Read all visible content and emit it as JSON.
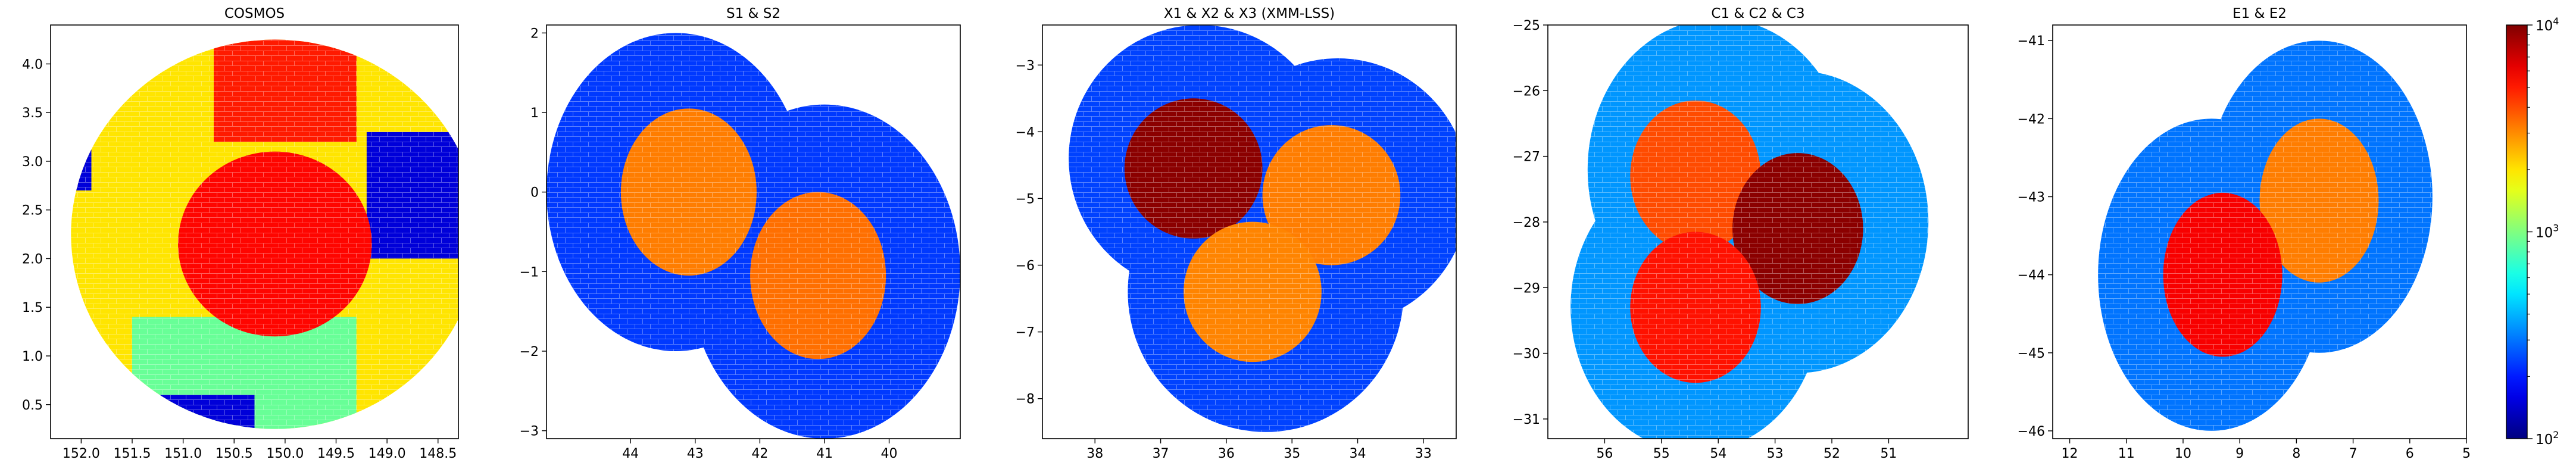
{
  "colorbar": {
    "scale": "log",
    "range": [
      100,
      10000
    ],
    "colormap": "jet",
    "tick_labels": [
      {
        "base": "10",
        "exp": "2",
        "value": 100
      },
      {
        "base": "10",
        "exp": "3",
        "value": 1000
      },
      {
        "base": "10",
        "exp": "4",
        "value": 10000
      }
    ]
  },
  "chart_data": [
    {
      "type": "heatmap",
      "title": "COSMOS",
      "xlabel": "",
      "ylabel": "",
      "xlim": [
        152.3,
        148.3
      ],
      "ylim": [
        0.15,
        4.4
      ],
      "x_inverted": true,
      "x_ticks": [
        "152.0",
        "151.5",
        "151.0",
        "150.5",
        "150.0",
        "149.5",
        "149.0",
        "148.5"
      ],
      "x_tick_values": [
        152.0,
        151.5,
        151.0,
        150.5,
        150.0,
        149.5,
        149.0,
        148.5
      ],
      "y_ticks": [
        "0.5",
        "1.0",
        "1.5",
        "2.0",
        "2.5",
        "3.0",
        "3.5",
        "4.0"
      ],
      "y_tick_values": [
        0.5,
        1.0,
        1.5,
        2.0,
        2.5,
        3.0,
        3.5,
        4.0
      ],
      "footprint": {
        "shape": "circle",
        "center": [
          150.1,
          2.25
        ],
        "radius": 2.0
      },
      "background_level": 2000,
      "regions": [
        {
          "kind": "rect",
          "x": [
            149.3,
            151.5
          ],
          "y": [
            0.15,
            1.4
          ],
          "level": 900
        },
        {
          "kind": "rect",
          "x": [
            150.3,
            151.5
          ],
          "y": [
            0.15,
            0.6
          ],
          "level": 150
        },
        {
          "kind": "rect",
          "x": [
            148.3,
            149.2
          ],
          "y": [
            2.0,
            3.3
          ],
          "level": 150
        },
        {
          "kind": "rect",
          "x": [
            151.9,
            152.3
          ],
          "y": [
            2.7,
            3.4
          ],
          "level": 150
        },
        {
          "kind": "rect",
          "x": [
            149.3,
            150.7
          ],
          "y": [
            3.2,
            4.4
          ],
          "level": 5000
        },
        {
          "kind": "circle",
          "center": [
            150.1,
            2.15
          ],
          "radius": 0.95,
          "level": 5500
        }
      ]
    },
    {
      "type": "heatmap",
      "title": "S1 & S2",
      "xlabel": "",
      "ylabel": "",
      "xlim": [
        45.3,
        38.9
      ],
      "ylim": [
        -3.1,
        2.1
      ],
      "x_inverted": true,
      "x_ticks": [
        "44",
        "43",
        "42",
        "41",
        "40"
      ],
      "x_tick_values": [
        44,
        43,
        42,
        41,
        40
      ],
      "y_ticks": [
        "−3",
        "−2",
        "−1",
        "0",
        "1",
        "2"
      ],
      "y_tick_values": [
        -3,
        -2,
        -1,
        0,
        1,
        2
      ],
      "footprint": {
        "shape": "union_of_circles",
        "circles": [
          [
            43.3,
            0.0,
            2.0
          ],
          [
            41.0,
            -1.0,
            2.1
          ]
        ]
      },
      "background_level": 230,
      "regions": [
        {
          "kind": "circle",
          "center": [
            43.1,
            0.0
          ],
          "radius": 1.05,
          "level": 3200
        },
        {
          "kind": "circle",
          "center": [
            41.1,
            -1.05
          ],
          "radius": 1.05,
          "level": 3400
        }
      ]
    },
    {
      "type": "heatmap",
      "title": "X1 & X2 & X3 (XMM-LSS)",
      "xlabel": "",
      "ylabel": "",
      "xlim": [
        38.8,
        32.5
      ],
      "ylim": [
        -8.6,
        -2.4
      ],
      "x_inverted": true,
      "x_ticks": [
        "38",
        "37",
        "36",
        "35",
        "34",
        "33"
      ],
      "x_tick_values": [
        38,
        37,
        36,
        35,
        34,
        33
      ],
      "y_ticks": [
        "−8",
        "−7",
        "−6",
        "−5",
        "−4",
        "−3"
      ],
      "y_tick_values": [
        -8,
        -7,
        -6,
        -5,
        -4,
        -3
      ],
      "footprint": {
        "shape": "union_of_circles",
        "circles": [
          [
            36.4,
            -4.4,
            2.0
          ],
          [
            34.3,
            -4.9,
            2.0
          ],
          [
            35.4,
            -6.4,
            2.1
          ]
        ]
      },
      "background_level": 240,
      "regions": [
        {
          "kind": "circle",
          "center": [
            36.5,
            -4.55
          ],
          "radius": 1.05,
          "level": 9500
        },
        {
          "kind": "circle",
          "center": [
            34.4,
            -4.95
          ],
          "radius": 1.05,
          "level": 3200
        },
        {
          "kind": "circle",
          "center": [
            35.6,
            -6.4
          ],
          "radius": 1.05,
          "level": 3100
        }
      ]
    },
    {
      "type": "heatmap",
      "title": "C1 & C2 & C3",
      "xlabel": "",
      "ylabel": "",
      "xlim": [
        57.0,
        49.6
      ],
      "ylim": [
        -31.3,
        -25.0
      ],
      "x_inverted": true,
      "x_ticks": [
        "56",
        "55",
        "54",
        "53",
        "52",
        "51"
      ],
      "x_tick_values": [
        56,
        55,
        54,
        53,
        52,
        51
      ],
      "y_ticks": [
        "−31",
        "−30",
        "−29",
        "−28",
        "−27",
        "−26",
        "−25"
      ],
      "y_tick_values": [
        -31,
        -30,
        -29,
        -28,
        -27,
        -26,
        -25
      ],
      "footprint": {
        "shape": "union_of_circles",
        "circles": [
          [
            54.0,
            -27.2,
            2.3
          ],
          [
            52.6,
            -28.0,
            2.3
          ],
          [
            54.4,
            -29.3,
            2.2
          ]
        ]
      },
      "background_level": 350,
      "regions": [
        {
          "kind": "circle",
          "center": [
            54.4,
            -27.3
          ],
          "radius": 1.15,
          "level": 4000
        },
        {
          "kind": "circle",
          "center": [
            52.6,
            -28.1
          ],
          "radius": 1.15,
          "level": 9500
        },
        {
          "kind": "circle",
          "center": [
            54.4,
            -29.3
          ],
          "radius": 1.15,
          "level": 5200
        }
      ]
    },
    {
      "type": "heatmap",
      "title": "E1 & E2",
      "xlabel": "",
      "ylabel": "",
      "xlim": [
        12.3,
        5.0
      ],
      "ylim": [
        -46.1,
        -40.8
      ],
      "x_inverted": true,
      "x_ticks": [
        "12",
        "11",
        "10",
        "9",
        "8",
        "7",
        "6",
        "5"
      ],
      "x_tick_values": [
        12,
        11,
        10,
        9,
        8,
        7,
        6,
        5
      ],
      "y_ticks": [
        "−46",
        "−45",
        "−44",
        "−43",
        "−42",
        "−41"
      ],
      "y_tick_values": [
        -46,
        -45,
        -44,
        -43,
        -42,
        -41
      ],
      "footprint": {
        "shape": "union_of_circles",
        "circles": [
          [
            7.6,
            -43.0,
            2.0
          ],
          [
            9.5,
            -44.0,
            2.0
          ]
        ]
      },
      "background_level": 300,
      "regions": [
        {
          "kind": "circle",
          "center": [
            7.6,
            -43.05
          ],
          "radius": 1.05,
          "level": 3200
        },
        {
          "kind": "circle",
          "center": [
            9.3,
            -44.0
          ],
          "radius": 1.05,
          "level": 5800
        }
      ]
    }
  ]
}
